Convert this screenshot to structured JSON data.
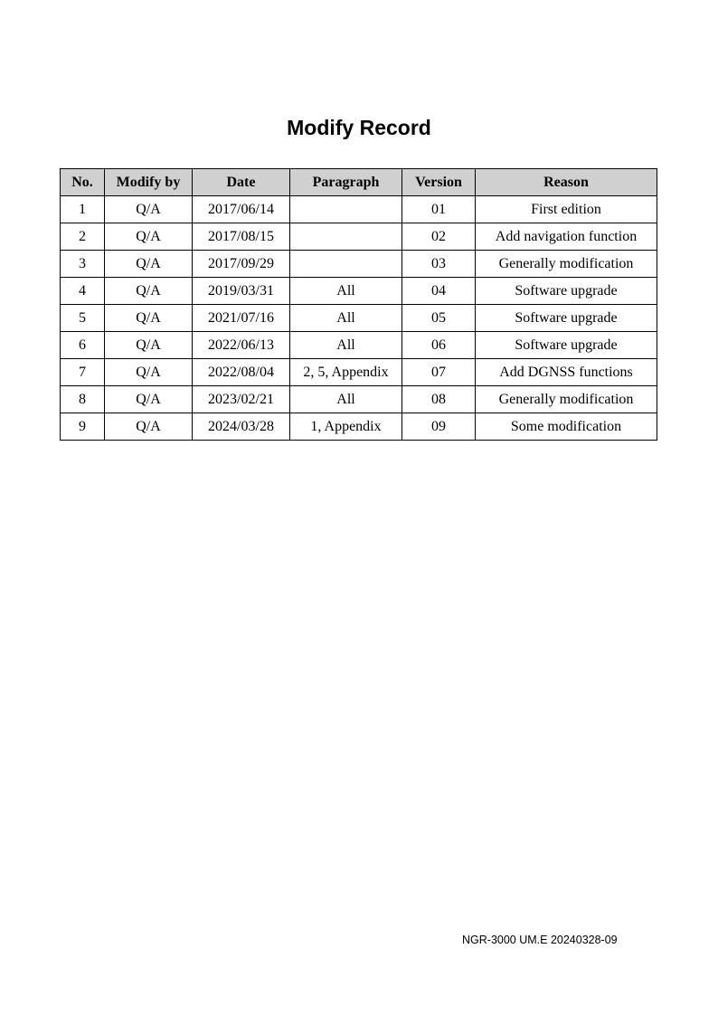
{
  "title": "Modify Record",
  "table": {
    "headers": [
      "No.",
      "Modify by",
      "Date",
      "Paragraph",
      "Version",
      "Reason"
    ],
    "rows": [
      [
        "1",
        "Q/A",
        "2017/06/14",
        "",
        "01",
        "First edition"
      ],
      [
        "2",
        "Q/A",
        "2017/08/15",
        "",
        "02",
        "Add navigation function"
      ],
      [
        "3",
        "Q/A",
        "2017/09/29",
        "",
        "03",
        "Generally modification"
      ],
      [
        "4",
        "Q/A",
        "2019/03/31",
        "All",
        "04",
        "Software upgrade"
      ],
      [
        "5",
        "Q/A",
        "2021/07/16",
        "All",
        "05",
        "Software upgrade"
      ],
      [
        "6",
        "Q/A",
        "2022/06/13",
        "All",
        "06",
        "Software upgrade"
      ],
      [
        "7",
        "Q/A",
        "2022/08/04",
        "2, 5, Appendix",
        "07",
        "Add  DGNSS functions"
      ],
      [
        "8",
        "Q/A",
        "2023/02/21",
        "All",
        "08",
        "Generally modification"
      ],
      [
        "9",
        "Q/A",
        "2024/03/28",
        "1, Appendix",
        "09",
        "Some modification"
      ]
    ]
  },
  "footer": "NGR-3000 UM.E 20240328-09",
  "colors": {
    "header_background": "#d0d0d0"
  }
}
